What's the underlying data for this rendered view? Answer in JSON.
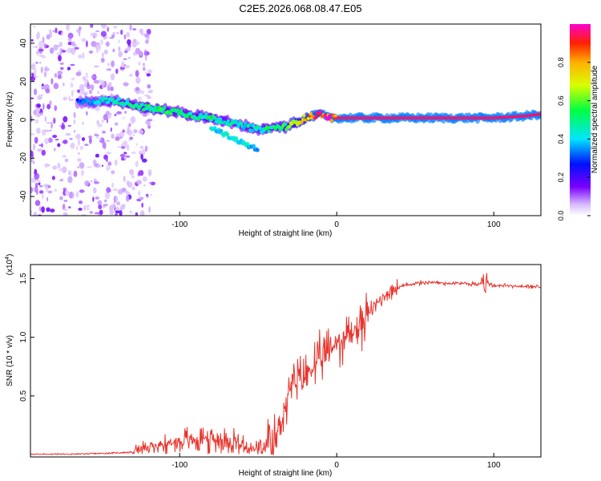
{
  "title": "C2E5.2026.068.08.47.E05",
  "chart_data": [
    {
      "type": "heatmap",
      "name": "spectrogram",
      "xlabel": "Height of straight line (km)",
      "ylabel": "Frequency (Hz)",
      "xlim": [
        -195,
        130
      ],
      "ylim": [
        -50,
        50
      ],
      "xticks": [
        -100,
        0,
        100
      ],
      "xtick_labels": [
        "-100",
        "0",
        "100"
      ],
      "yticks": [
        -40,
        -20,
        0,
        20,
        40
      ],
      "ytick_labels": [
        "-40",
        "-20",
        "0",
        "20",
        "40"
      ],
      "colorbar": {
        "label": "Normalized spectral amplitude",
        "range": [
          0,
          1
        ],
        "ticks": [
          0.0,
          0.2,
          0.4,
          0.6,
          0.8
        ],
        "tick_labels": [
          "0.0",
          "0.2",
          "0.4",
          "0.6",
          "0.8"
        ]
      },
      "ridge": {
        "x": [
          -165,
          -150,
          -140,
          -130,
          -120,
          -110,
          -100,
          -90,
          -80,
          -70,
          -60,
          -55,
          -50,
          -45,
          -40,
          -35,
          -30,
          -25,
          -20,
          -15,
          -10,
          -5,
          0,
          10,
          20,
          40,
          60,
          80,
          100,
          120,
          130
        ],
        "freq": [
          9,
          10,
          10,
          8,
          6,
          5,
          4,
          2,
          1,
          -1,
          -3,
          -4,
          -5,
          -5,
          -4,
          -4,
          -3,
          -1,
          1,
          2,
          3,
          1,
          1,
          1,
          1,
          1,
          1,
          1,
          1,
          2,
          3
        ],
        "amplitude": [
          0.3,
          0.4,
          0.45,
          0.5,
          0.5,
          0.55,
          0.5,
          0.5,
          0.5,
          0.45,
          0.45,
          0.45,
          0.45,
          0.5,
          0.5,
          0.55,
          0.6,
          0.7,
          0.8,
          0.85,
          0.9,
          0.92,
          0.95,
          0.95,
          0.95,
          0.95,
          0.95,
          0.95,
          0.95,
          0.95,
          0.95
        ]
      },
      "branch": {
        "x": [
          -80,
          -75,
          -70,
          -65,
          -60,
          -55,
          -50
        ],
        "freq": [
          -4,
          -6,
          -8,
          -10,
          -12,
          -14,
          -15
        ],
        "amplitude": [
          0.45,
          0.45,
          0.45,
          0.45,
          0.45,
          0.4,
          0.35
        ]
      }
    },
    {
      "type": "line",
      "name": "snr",
      "xlabel": "Height of straight line (km)",
      "ylabel": "SNR (10 * v/v)",
      "y_multiplier": "(x10",
      "y_multiplier_exp": "4",
      "y_multiplier_close": ")",
      "units_note": "values in units of 10^4",
      "xlim": [
        -195,
        130
      ],
      "ylim": [
        -0.02,
        1.62
      ],
      "xticks": [
        -100,
        0,
        100
      ],
      "xtick_labels": [
        "-100",
        "0",
        "100"
      ],
      "yticks": [
        0.5,
        1.0,
        1.5
      ],
      "ytick_labels": [
        "0.5",
        "1.0",
        "1.5"
      ],
      "color": "#e8352e",
      "series": [
        {
          "name": "SNR",
          "x": [
            -195,
            -175,
            -150,
            -130,
            -125,
            -115,
            -105,
            -95,
            -85,
            -75,
            -65,
            -60,
            -55,
            -50,
            -45,
            -40,
            -35,
            -30,
            -25,
            -20,
            -15,
            -10,
            -5,
            0,
            5,
            10,
            15,
            20,
            25,
            30,
            35,
            40,
            50,
            60,
            70,
            80,
            90,
            95,
            100,
            110,
            120,
            130
          ],
          "y": [
            0.0,
            0.0,
            0.01,
            0.02,
            0.04,
            0.07,
            0.1,
            0.12,
            0.14,
            0.13,
            0.12,
            0.08,
            0.05,
            0.04,
            0.04,
            0.1,
            0.3,
            0.55,
            0.62,
            0.67,
            0.75,
            0.8,
            0.88,
            0.95,
            1.0,
            1.05,
            1.1,
            1.2,
            1.28,
            1.35,
            1.4,
            1.43,
            1.46,
            1.47,
            1.46,
            1.46,
            1.45,
            1.47,
            1.44,
            1.44,
            1.43,
            1.43
          ]
        }
      ]
    }
  ]
}
